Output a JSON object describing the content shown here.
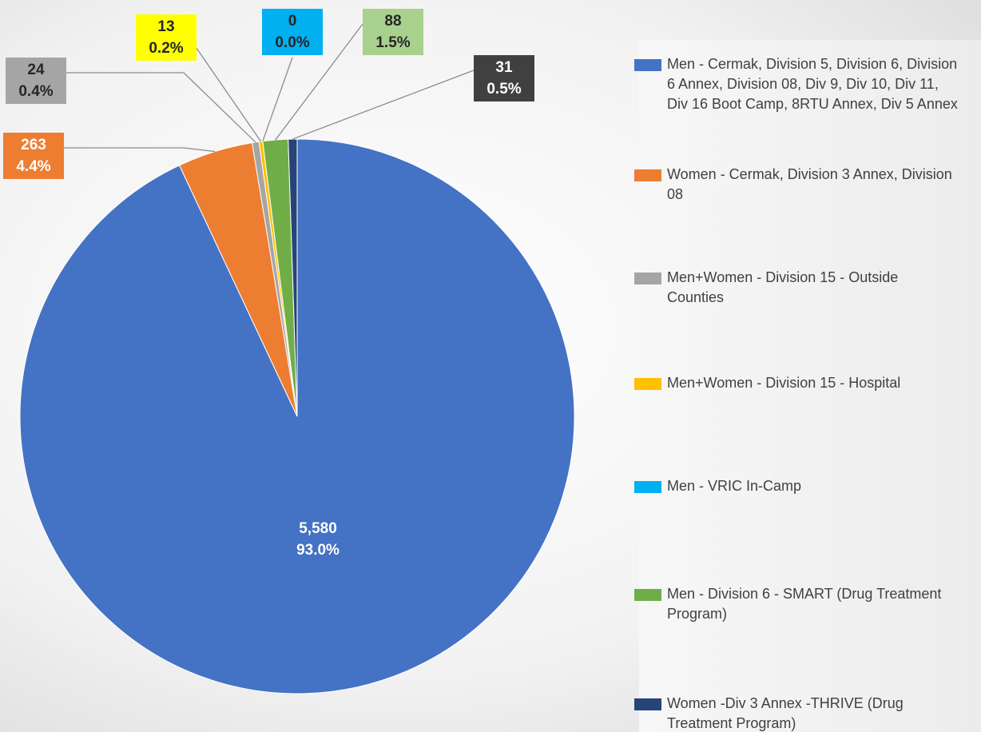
{
  "chart_data": {
    "type": "pie",
    "categories": [
      "Men - Cermak, Division 5, Division 6, Division 6 Annex, Division 08, Div 9, Div 10, Div 11, Div 16 Boot Camp, 8RTU Annex, Div 5 Annex",
      "Women - Cermak, Division 3 Annex, Division 08",
      "Men+Women - Division 15 - Outside Counties",
      "Men+Women - Division 15 - Hospital",
      "Men - VRIC In-Camp",
      "Men - Division 6 - SMART (Drug Treatment Program)",
      "Women -Div 3 Annex -THRIVE (Drug Treatment Program)"
    ],
    "values": [
      5580,
      263,
      24,
      13,
      0,
      88,
      31
    ],
    "value_labels": [
      "5,580",
      "263",
      "24",
      "13",
      "0",
      "88",
      "31"
    ],
    "percent_labels": [
      "93.0%",
      "4.4%",
      "0.4%",
      "0.2%",
      "0.0%",
      "1.5%",
      "0.5%"
    ],
    "colors": [
      "#4472c4",
      "#ed7d31",
      "#a5a5a5",
      "#ffc000",
      "#00b0f0",
      "#70ad47",
      "#264478"
    ],
    "legend": "right"
  }
}
